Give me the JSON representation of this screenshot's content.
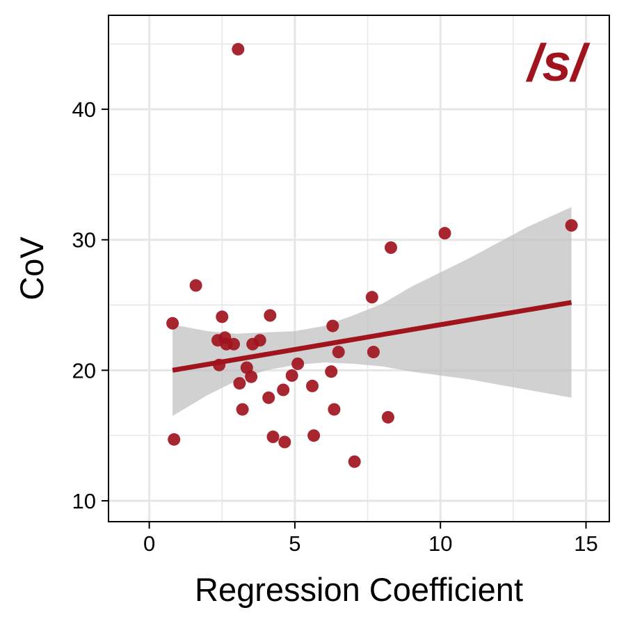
{
  "chart_data": {
    "type": "scatter",
    "xlabel": "Regression Coefficient",
    "ylabel": "CoV",
    "annotation": "/s/",
    "xlim": [
      -1.4,
      15.8
    ],
    "ylim": [
      8.4,
      47.2
    ],
    "x_ticks": [
      0,
      5,
      10,
      15
    ],
    "y_ticks": [
      10,
      20,
      30,
      40
    ],
    "x_minor_ticks": [
      2.5,
      7.5,
      12.5
    ],
    "y_minor_ticks": [
      15,
      25,
      35,
      45
    ],
    "grid": true,
    "colors": {
      "points": "#A0141E",
      "fit_line": "#A0141E",
      "ribbon": "#BEBEBE",
      "annotation": "#A0141E",
      "grid": "#E6E6E6"
    },
    "points": [
      {
        "x": 0.8,
        "y": 23.6
      },
      {
        "x": 0.85,
        "y": 14.7
      },
      {
        "x": 1.6,
        "y": 26.5
      },
      {
        "x": 2.35,
        "y": 22.3
      },
      {
        "x": 2.4,
        "y": 20.4
      },
      {
        "x": 2.5,
        "y": 24.1
      },
      {
        "x": 2.6,
        "y": 22.5
      },
      {
        "x": 2.65,
        "y": 22.0
      },
      {
        "x": 2.9,
        "y": 22.0
      },
      {
        "x": 3.05,
        "y": 44.6
      },
      {
        "x": 3.1,
        "y": 19.0
      },
      {
        "x": 3.2,
        "y": 17.0
      },
      {
        "x": 3.35,
        "y": 20.2
      },
      {
        "x": 3.5,
        "y": 19.5
      },
      {
        "x": 3.55,
        "y": 22.0
      },
      {
        "x": 3.8,
        "y": 22.3
      },
      {
        "x": 4.1,
        "y": 17.9
      },
      {
        "x": 4.15,
        "y": 24.2
      },
      {
        "x": 4.25,
        "y": 14.9
      },
      {
        "x": 4.6,
        "y": 18.5
      },
      {
        "x": 4.65,
        "y": 14.5
      },
      {
        "x": 4.9,
        "y": 19.6
      },
      {
        "x": 5.1,
        "y": 20.5
      },
      {
        "x": 5.6,
        "y": 18.8
      },
      {
        "x": 5.65,
        "y": 15.0
      },
      {
        "x": 6.25,
        "y": 19.9
      },
      {
        "x": 6.3,
        "y": 23.4
      },
      {
        "x": 6.35,
        "y": 17.0
      },
      {
        "x": 6.5,
        "y": 21.4
      },
      {
        "x": 7.05,
        "y": 13.0
      },
      {
        "x": 7.65,
        "y": 25.6
      },
      {
        "x": 7.7,
        "y": 21.4
      },
      {
        "x": 8.2,
        "y": 16.4
      },
      {
        "x": 8.3,
        "y": 29.4
      },
      {
        "x": 10.15,
        "y": 30.5
      },
      {
        "x": 14.5,
        "y": 31.1
      }
    ],
    "fit": {
      "x": [
        0.8,
        14.5
      ],
      "y": [
        20.0,
        25.2
      ]
    },
    "ribbon": [
      {
        "x": 0.8,
        "lo": 16.5,
        "hi": 23.5
      },
      {
        "x": 2.0,
        "lo": 18.1,
        "hi": 23.0
      },
      {
        "x": 3.0,
        "lo": 19.2,
        "hi": 22.8
      },
      {
        "x": 4.0,
        "lo": 20.0,
        "hi": 22.9
      },
      {
        "x": 5.0,
        "lo": 20.4,
        "hi": 23.0
      },
      {
        "x": 6.0,
        "lo": 20.6,
        "hi": 23.4
      },
      {
        "x": 7.0,
        "lo": 20.5,
        "hi": 24.2
      },
      {
        "x": 8.0,
        "lo": 20.3,
        "hi": 25.1
      },
      {
        "x": 9.0,
        "lo": 19.9,
        "hi": 26.4
      },
      {
        "x": 10.0,
        "lo": 19.6,
        "hi": 27.5
      },
      {
        "x": 11.0,
        "lo": 19.3,
        "hi": 28.6
      },
      {
        "x": 12.0,
        "lo": 18.9,
        "hi": 29.8
      },
      {
        "x": 13.0,
        "lo": 18.5,
        "hi": 31.0
      },
      {
        "x": 14.5,
        "lo": 17.9,
        "hi": 32.5
      }
    ]
  }
}
